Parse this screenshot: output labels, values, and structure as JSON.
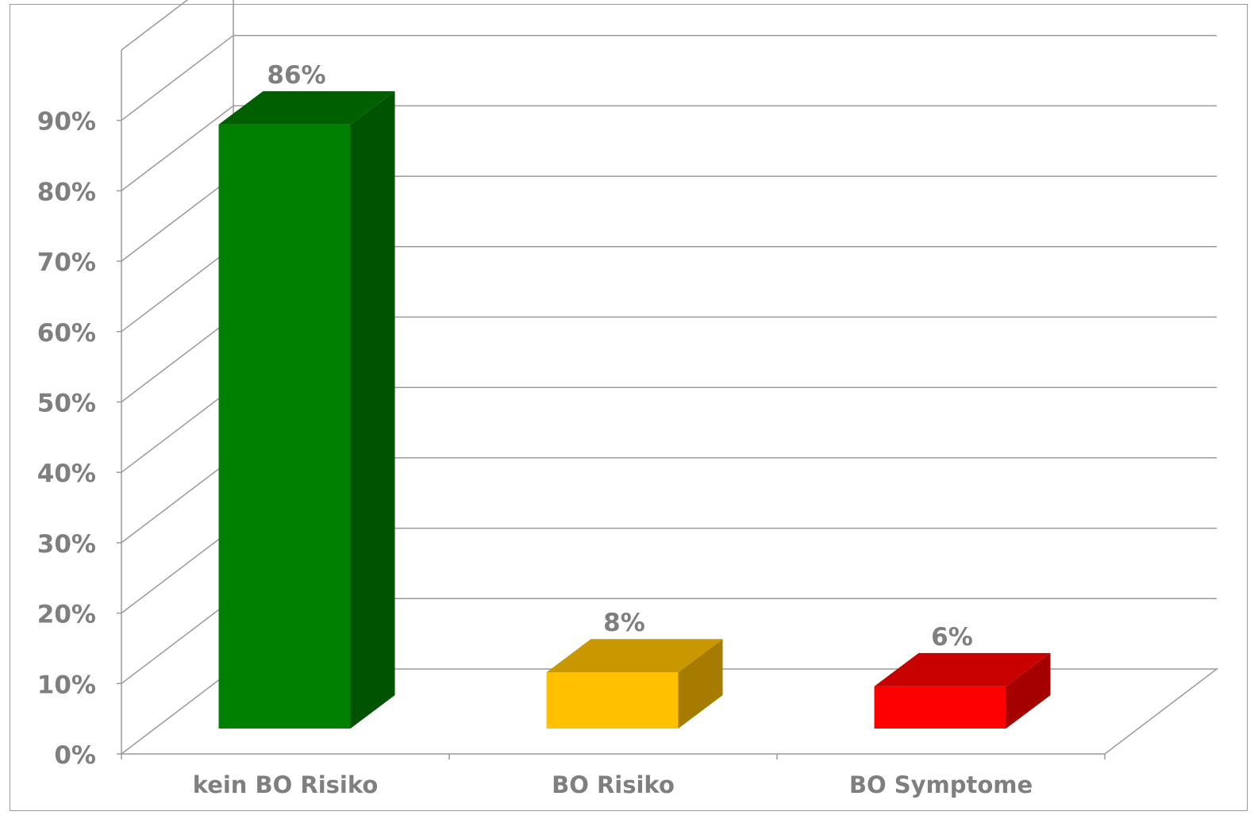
{
  "chart_data": {
    "type": "bar",
    "style": "3d-column",
    "categories": [
      "kein BO Risiko",
      "BO Risiko",
      "BO Symptome"
    ],
    "values": [
      86,
      8,
      6
    ],
    "data_labels": [
      "86%",
      "8%",
      "6%"
    ],
    "colors": {
      "front": [
        "#008000",
        "#FFC000",
        "#FF0000"
      ],
      "side": [
        "#005300",
        "#A57C00",
        "#A50000"
      ],
      "top": [
        "#006000",
        "#C99800",
        "#C80000"
      ],
      "grid": "#9a9a9a",
      "text": "#7f7f7f"
    },
    "ylim": [
      0,
      100
    ],
    "ytick_values": [
      0,
      10,
      20,
      30,
      40,
      50,
      60,
      70,
      80,
      90
    ],
    "ytick_labels": [
      "0%",
      "10%",
      "20%",
      "30%",
      "40%",
      "50%",
      "60%",
      "70%",
      "80%",
      "90%"
    ],
    "title": "",
    "xlabel": "",
    "ylabel": "",
    "grid": true,
    "legend": "none"
  }
}
